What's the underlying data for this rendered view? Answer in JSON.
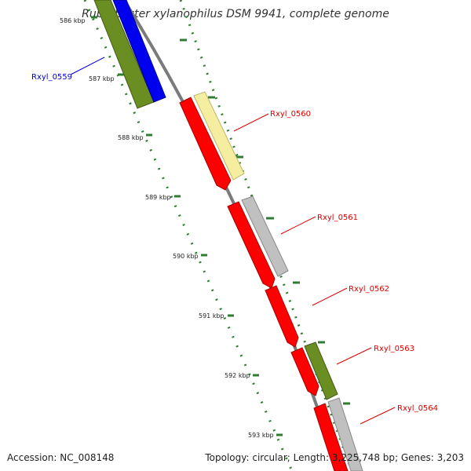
{
  "title": "Rubrobacter xylanophilus DSM 9941, complete genome",
  "footer": {
    "accession": "Accession: NC_008148",
    "stats": "Topology: circular; Length: 3,225,748 bp; Genes: 3,203"
  },
  "ticks": [
    {
      "label": "586 kbp"
    },
    {
      "label": "587 kbp"
    },
    {
      "label": "588 kbp"
    },
    {
      "label": "589 kbp"
    },
    {
      "label": "590 kbp"
    },
    {
      "label": "591 kbp"
    },
    {
      "label": "592 kbp"
    },
    {
      "label": "593 kbp"
    }
  ],
  "genes": [
    {
      "label": "Rxyl_0559",
      "label_color": "#0000cc"
    },
    {
      "label": "Rxyl_0560",
      "label_color": "#dd0000"
    },
    {
      "label": "Rxyl_0561",
      "label_color": "#dd0000"
    },
    {
      "label": "Rxyl_0562",
      "label_color": "#dd0000"
    },
    {
      "label": "Rxyl_0563",
      "label_color": "#dd0000"
    },
    {
      "label": "Rxyl_0564",
      "label_color": "#dd0000"
    }
  ],
  "colors": {
    "cds": "#ff0000",
    "blue_feature": "#0000ee",
    "olive_feature": "#6b8e23",
    "yellow_feature": "#f5eea0",
    "grey_feature": "#c0c0c0",
    "backbone": "#7a7a7a",
    "tick": "#2e7d32"
  }
}
